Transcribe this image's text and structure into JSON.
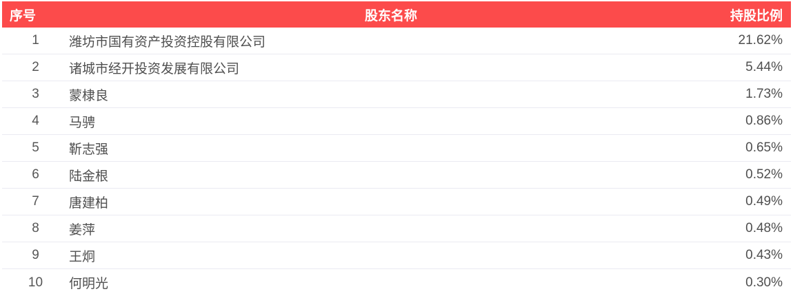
{
  "colors": {
    "header_background": "#fc4b4b",
    "header_text": "#ffffff",
    "body_text": "#4f4f4f",
    "row_divider": "#eaeaf2"
  },
  "table": {
    "columns": {
      "index": "序号",
      "name": "股东名称",
      "ratio": "持股比例"
    },
    "rows": [
      {
        "index": "1",
        "name": "潍坊市国有资产投资控股有限公司",
        "ratio": "21.62%"
      },
      {
        "index": "2",
        "name": "诸城市经开投资发展有限公司",
        "ratio": "5.44%"
      },
      {
        "index": "3",
        "name": "蒙棣良",
        "ratio": "1.73%"
      },
      {
        "index": "4",
        "name": "马骋",
        "ratio": "0.86%"
      },
      {
        "index": "5",
        "name": "靳志强",
        "ratio": "0.65%"
      },
      {
        "index": "6",
        "name": "陆金根",
        "ratio": "0.52%"
      },
      {
        "index": "7",
        "name": "唐建柏",
        "ratio": "0.49%"
      },
      {
        "index": "8",
        "name": "姜萍",
        "ratio": "0.48%"
      },
      {
        "index": "9",
        "name": "王炯",
        "ratio": "0.43%"
      },
      {
        "index": "10",
        "name": "何明光",
        "ratio": "0.30%"
      }
    ]
  }
}
